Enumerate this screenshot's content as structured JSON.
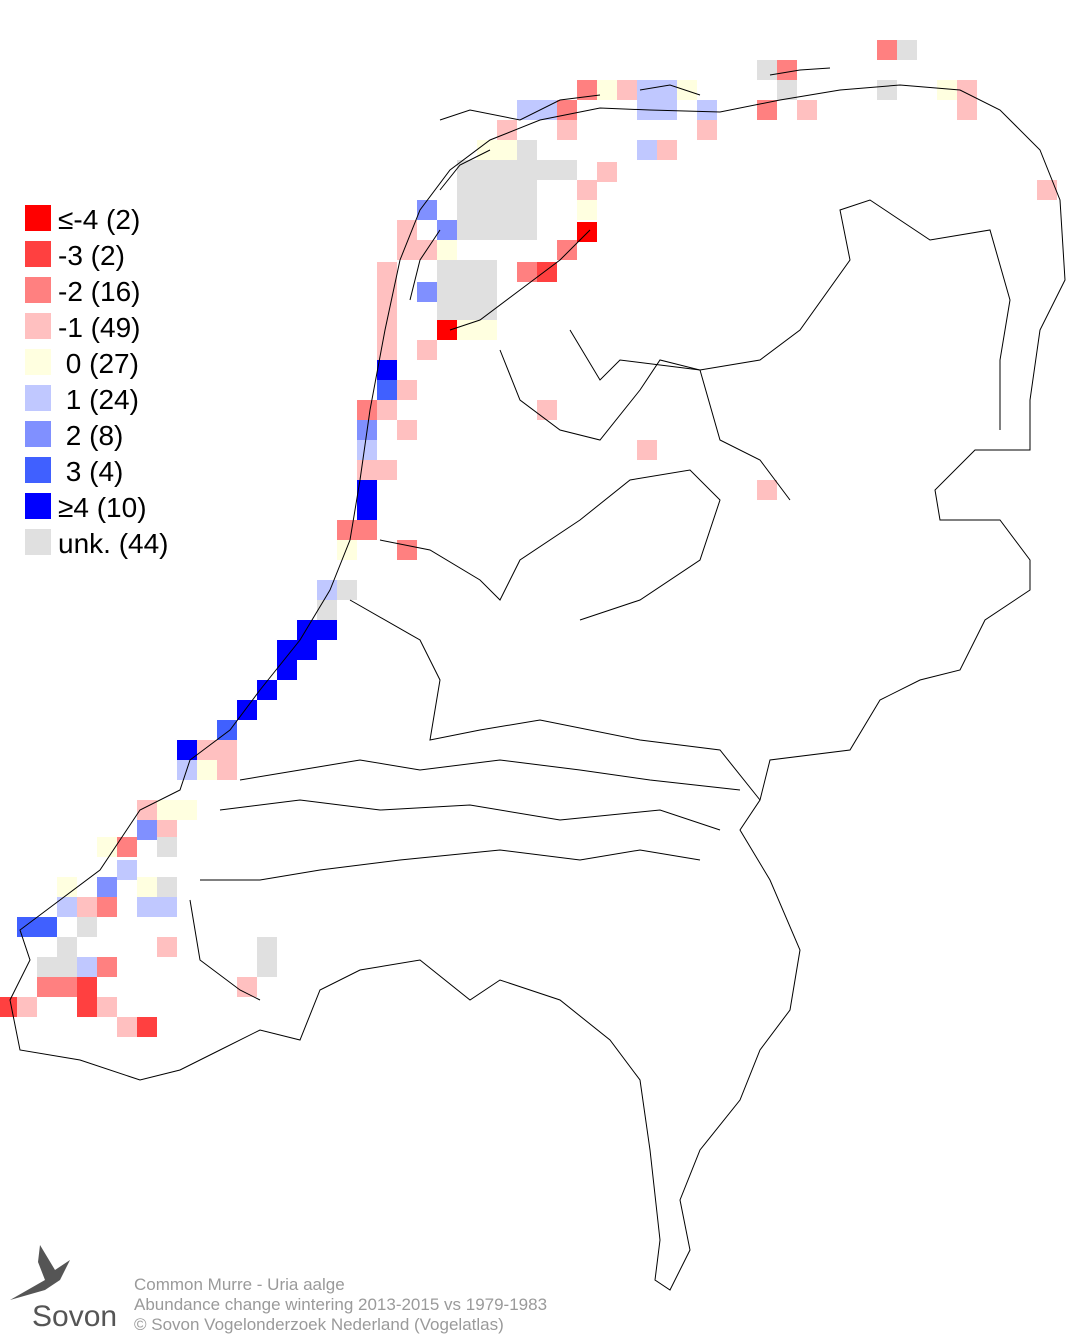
{
  "legend": [
    {
      "label": "≤-4 (2)",
      "color": "#ff0000"
    },
    {
      "label": "-3 (2)",
      "color": "#ff4040"
    },
    {
      "label": "-2 (16)",
      "color": "#ff8080"
    },
    {
      "label": "-1 (49)",
      "color": "#ffc0c0"
    },
    {
      "label": " 0 (27)",
      "color": "#ffffe0"
    },
    {
      "label": " 1 (24)",
      "color": "#c0c8ff"
    },
    {
      "label": " 2 (8)",
      "color": "#8090ff"
    },
    {
      "label": " 3 (4)",
      "color": "#4060ff"
    },
    {
      "label": "≥4 (10)",
      "color": "#0000ff"
    },
    {
      "label": "unk. (44)",
      "color": "#e0e0e0"
    }
  ],
  "footer": {
    "line1": "Common Murre - Uria aalge",
    "line2": "Abundance change wintering  2013-2015 vs 1979-1983",
    "line3": "© Sovon Vogelonderzoek Nederland (Vogelatlas)"
  },
  "logo": {
    "text": "Sovon"
  }
}
